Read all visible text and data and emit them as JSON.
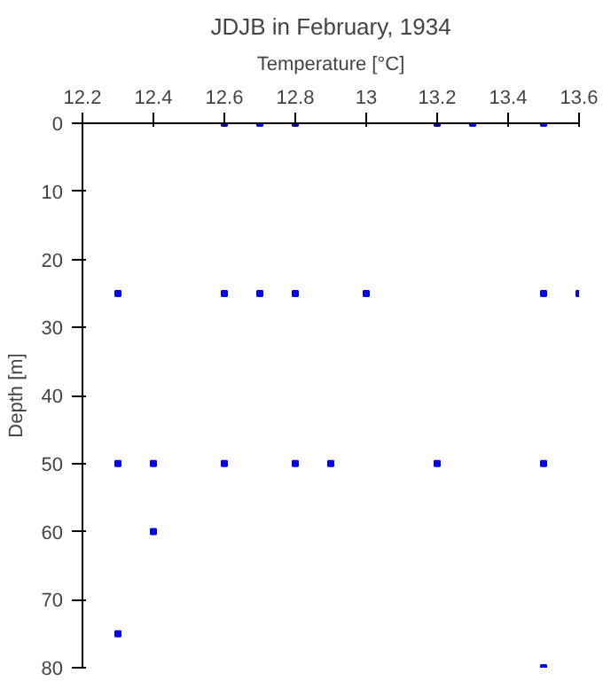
{
  "chart_data": {
    "type": "scatter",
    "title": "JDJB in February, 1934",
    "xlabel": "Temperature [°C]",
    "ylabel": "Depth [m]",
    "x": [
      12.6,
      12.7,
      12.8,
      13.2,
      13.3,
      13.5,
      12.3,
      12.6,
      12.7,
      12.8,
      13.0,
      13.5,
      13.6,
      12.3,
      12.4,
      12.6,
      12.8,
      12.9,
      13.2,
      13.5,
      12.4,
      12.3,
      13.5
    ],
    "values": [
      0,
      0,
      0,
      0,
      0,
      0,
      25,
      25,
      25,
      25,
      25,
      25,
      25,
      50,
      50,
      50,
      50,
      50,
      50,
      50,
      60,
      75,
      80
    ],
    "color": "#0000ff",
    "marker": "square",
    "xlim": [
      12.2,
      13.6
    ],
    "xticks": [
      12.2,
      12.4,
      12.6,
      12.8,
      13,
      13.2,
      13.4,
      13.6
    ],
    "ylim": [
      80,
      0
    ],
    "yticks": [
      0,
      10,
      20,
      30,
      40,
      50,
      60,
      70,
      80
    ],
    "grid": false
  }
}
